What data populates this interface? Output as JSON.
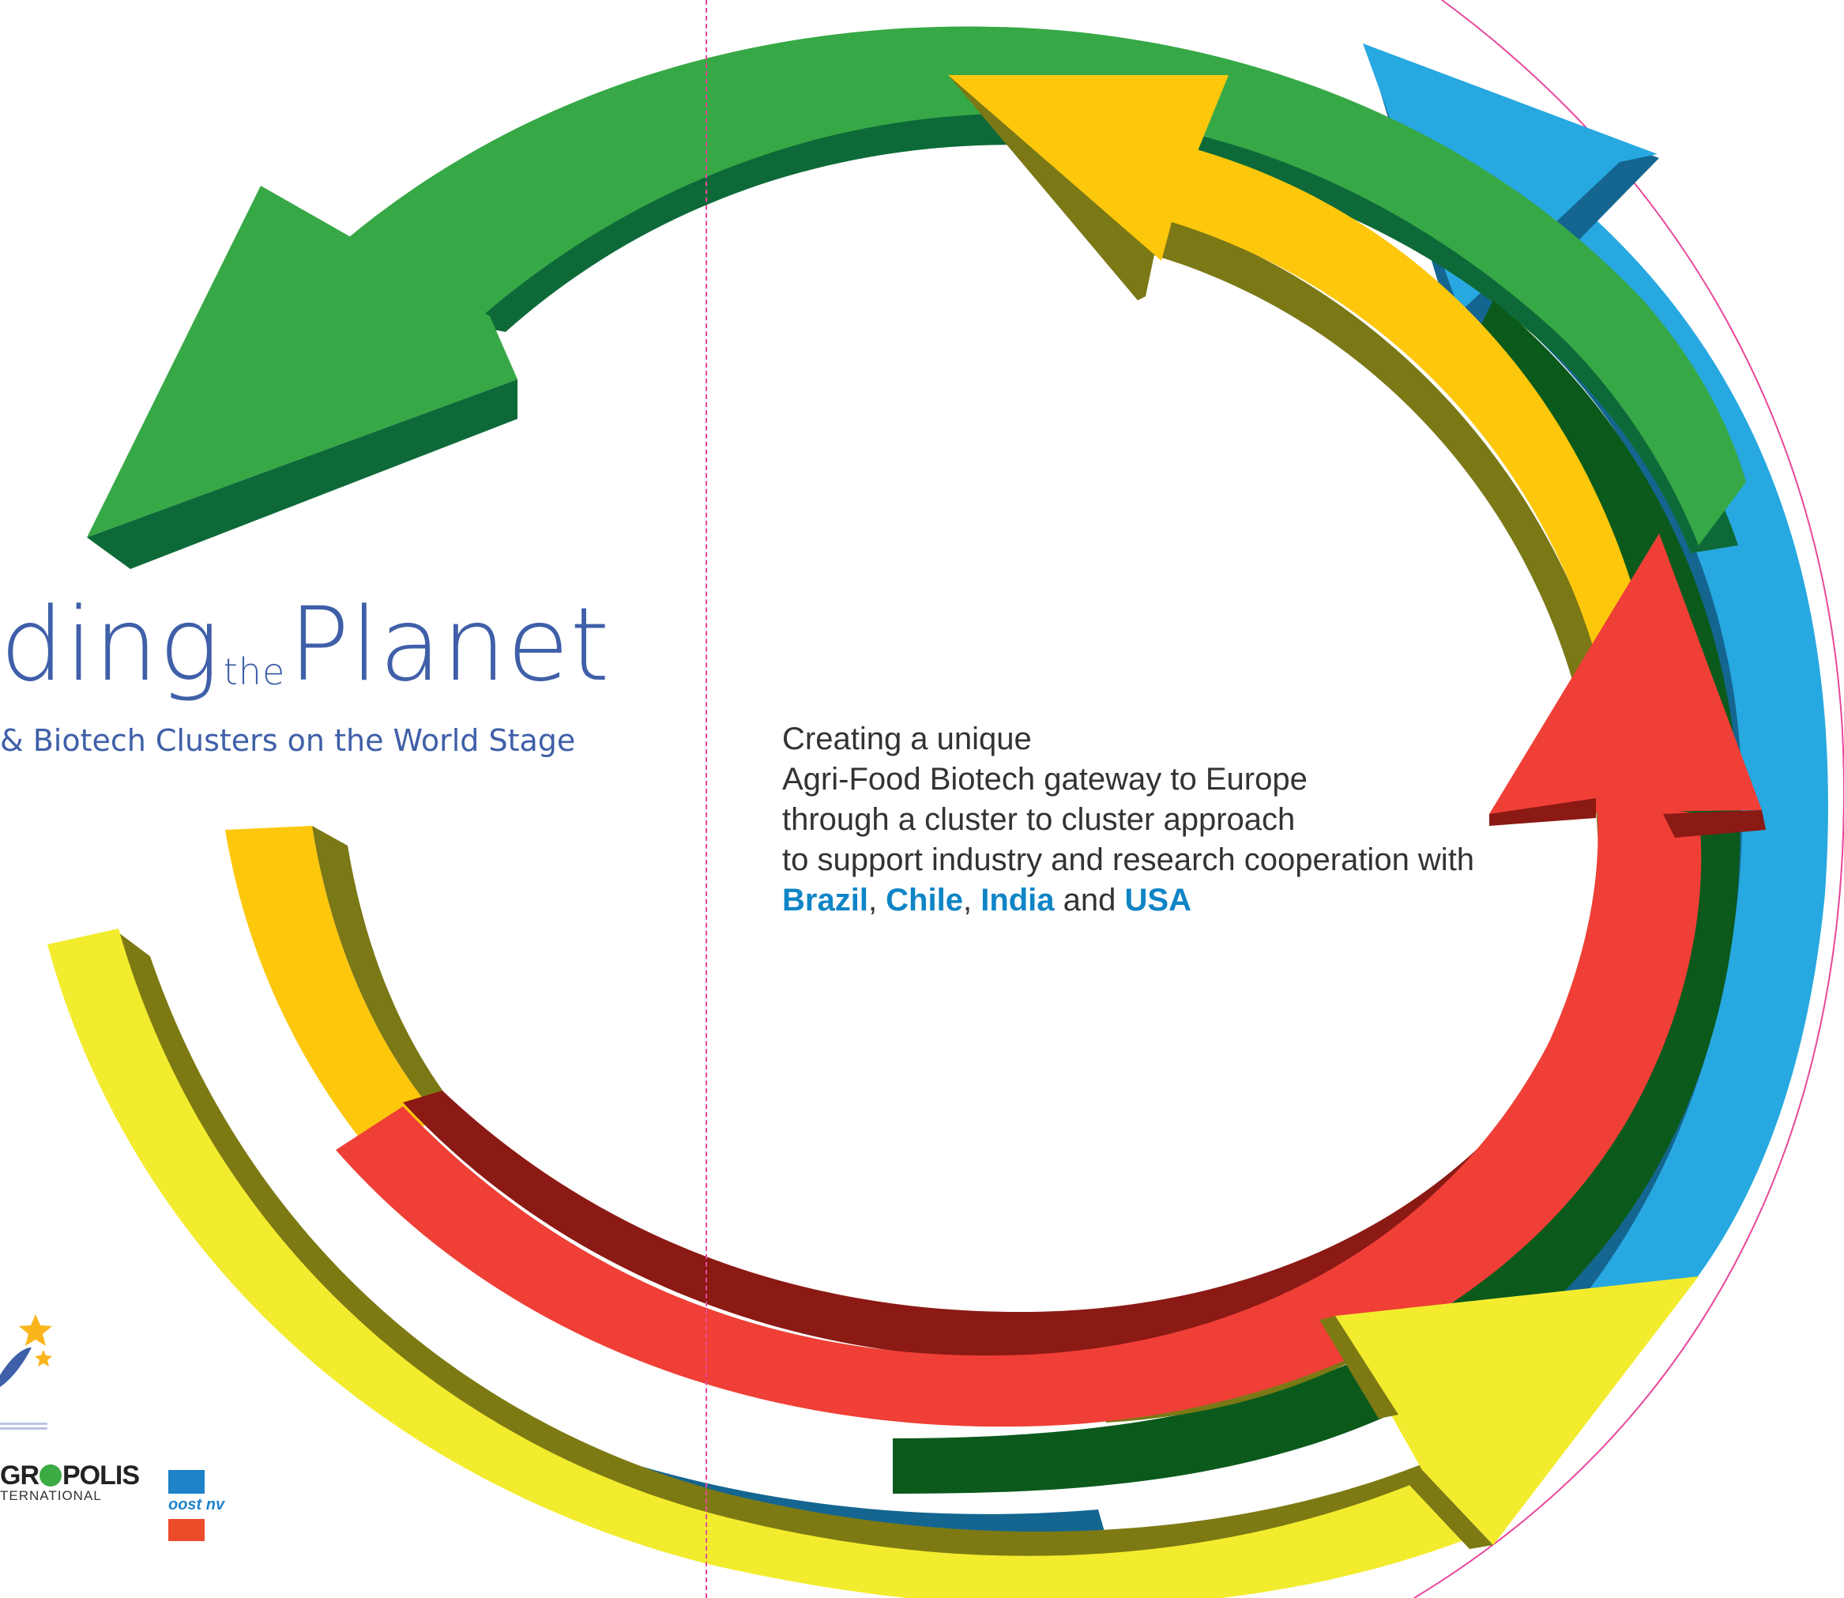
{
  "cover": {
    "title_part1": "ding",
    "title_small": "the",
    "title_part2": "Planet",
    "subtitle": "& Biotech Clusters on the World Stage"
  },
  "tagline": {
    "line1": "Creating a unique",
    "line2": "Agri-Food Biotech gateway to Europe",
    "line3": "through a cluster to cluster approach",
    "line4": "to support industry and research cooperation with",
    "countries": [
      "Brazil",
      "Chile",
      "India",
      "USA"
    ],
    "sep1": ", ",
    "sep2": ", ",
    "and": " and "
  },
  "logos": {
    "agropolis_pre": "GR",
    "agropolis_post": "POLIS",
    "agropolis_sub": "TERNATIONAL",
    "oost": "oost nv"
  },
  "colors": {
    "green": "#37a846",
    "blue": "#27a8e0",
    "orange": "#fdc70c",
    "red": "#ef3f36",
    "yellow": "#f3ec2e",
    "dark_green": "#0b5a1c",
    "accent_blue": "#0f84c6",
    "title_blue": "#3f5fa8",
    "fold_line": "#e8479a"
  },
  "icons": [
    "green-arrow-icon",
    "orange-arrow-icon",
    "blue-arrow-icon",
    "red-arrow-icon",
    "yellow-arrow-icon",
    "stars-icon"
  ]
}
